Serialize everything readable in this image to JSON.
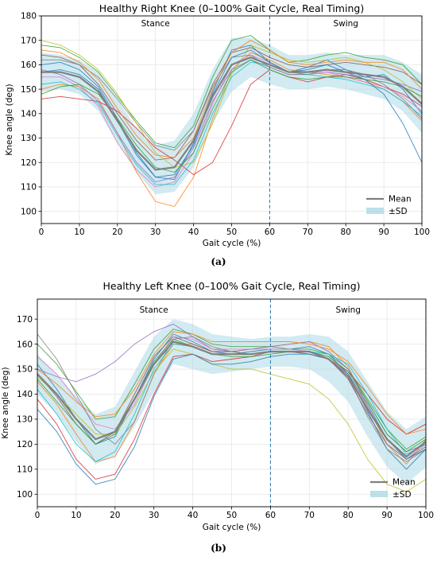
{
  "chart_data": [
    {
      "type": "line",
      "title": "Healthy Right Knee (0–100% Gait Cycle, Real Timing)",
      "xlabel": "Gait cycle (%)",
      "ylabel": "Knee angle (deg)",
      "xlim": [
        0,
        100
      ],
      "ylim": [
        95,
        180
      ],
      "xticks": [
        "0",
        "10",
        "20",
        "30",
        "40",
        "50",
        "60",
        "70",
        "80",
        "90",
        "100"
      ],
      "yticks": [
        "100",
        "110",
        "120",
        "130",
        "140",
        "150",
        "160",
        "170",
        "180"
      ],
      "grid": true,
      "legend_position": "bottom-right",
      "annotations": [
        "Stance",
        "Swing"
      ],
      "vlines": [
        60,
        100
      ],
      "caption": "(a)",
      "legend": {
        "mean_label": "Mean",
        "sd_label": "±SD"
      },
      "mean": {
        "x": [
          0,
          5,
          10,
          15,
          20,
          25,
          30,
          35,
          40,
          45,
          50,
          55,
          60,
          65,
          70,
          75,
          80,
          85,
          90,
          95,
          100
        ],
        "y": [
          157,
          157,
          155,
          149,
          137,
          125,
          117,
          118,
          129,
          147,
          160,
          163,
          160,
          157,
          157,
          158,
          157,
          156,
          155,
          151,
          144
        ]
      },
      "sd_upper": [
        165,
        164,
        162,
        157,
        146,
        134,
        127,
        129,
        140,
        158,
        171,
        171,
        168,
        164,
        164,
        165,
        164,
        164,
        164,
        161,
        156
      ],
      "sd_lower": [
        149,
        150,
        148,
        141,
        128,
        116,
        107,
        108,
        118,
        136,
        149,
        155,
        152,
        150,
        150,
        151,
        150,
        148,
        146,
        141,
        132
      ],
      "series": [
        {
          "y": [
            160,
            161,
            158,
            151,
            138,
            124,
            114,
            113,
            128,
            149,
            166,
            168,
            161,
            157,
            159,
            162,
            158,
            155,
            156,
            150,
            140
          ]
        },
        {
          "y": [
            150,
            152,
            151,
            146,
            132,
            116,
            104,
            102,
            114,
            138,
            158,
            165,
            162,
            158,
            157,
            156,
            155,
            153,
            150,
            145,
            137
          ]
        },
        {
          "y": [
            168,
            167,
            163,
            157,
            147,
            137,
            128,
            126,
            135,
            155,
            170,
            172,
            166,
            161,
            162,
            164,
            165,
            163,
            162,
            160,
            152
          ]
        },
        {
          "y": [
            146,
            147,
            146,
            145,
            141,
            134,
            126,
            121,
            115,
            120,
            135,
            152,
            158,
            155,
            153,
            155,
            156,
            154,
            151,
            148,
            143
          ]
        },
        {
          "y": [
            158,
            156,
            152,
            145,
            132,
            120,
            112,
            114,
            126,
            145,
            158,
            162,
            159,
            156,
            156,
            157,
            156,
            155,
            154,
            152,
            149
          ]
        },
        {
          "y": [
            164,
            163,
            160,
            152,
            140,
            129,
            121,
            122,
            133,
            152,
            165,
            167,
            163,
            160,
            159,
            160,
            161,
            160,
            159,
            157,
            152
          ]
        },
        {
          "y": [
            155,
            155,
            151,
            143,
            128,
            117,
            110,
            112,
            124,
            144,
            160,
            164,
            161,
            157,
            156,
            157,
            155,
            153,
            151,
            147,
            141
          ]
        },
        {
          "y": [
            162,
            162,
            160,
            155,
            146,
            136,
            127,
            125,
            133,
            151,
            163,
            164,
            159,
            156,
            156,
            158,
            158,
            156,
            152,
            146,
            138
          ]
        },
        {
          "y": [
            170,
            168,
            164,
            158,
            148,
            136,
            124,
            118,
            120,
            136,
            156,
            168,
            165,
            162,
            161,
            162,
            163,
            161,
            158,
            153,
            146
          ]
        },
        {
          "y": [
            152,
            153,
            150,
            144,
            131,
            119,
            111,
            111,
            121,
            140,
            155,
            161,
            160,
            157,
            156,
            155,
            154,
            152,
            150,
            145,
            139
          ]
        },
        {
          "y": [
            157,
            158,
            156,
            150,
            137,
            123,
            114,
            115,
            127,
            148,
            163,
            166,
            161,
            157,
            158,
            160,
            157,
            154,
            148,
            136,
            120
          ]
        },
        {
          "y": [
            166,
            165,
            161,
            154,
            142,
            131,
            123,
            122,
            130,
            150,
            165,
            170,
            166,
            161,
            160,
            161,
            162,
            161,
            161,
            158,
            150
          ]
        },
        {
          "y": [
            148,
            151,
            152,
            148,
            138,
            127,
            118,
            116,
            124,
            142,
            157,
            162,
            158,
            155,
            154,
            155,
            155,
            154,
            153,
            151,
            147
          ]
        }
      ]
    },
    {
      "type": "line",
      "title": "Healthy Left Knee (0–100% Gait Cycle, Real Timing)",
      "xlabel": "Gait cycle (%)",
      "ylabel": "Knee angle (deg)",
      "xlim": [
        0,
        100
      ],
      "ylim": [
        95,
        178
      ],
      "xticks": [
        "0",
        "10",
        "20",
        "30",
        "40",
        "50",
        "60",
        "70",
        "80",
        "90",
        "100"
      ],
      "yticks": [
        "100",
        "110",
        "120",
        "130",
        "140",
        "150",
        "160",
        "170"
      ],
      "grid": true,
      "legend_position": "bottom-right",
      "annotations": [
        "Stance",
        "Swing"
      ],
      "vlines": [
        60,
        100
      ],
      "caption": "(b)",
      "legend": {
        "mean_label": "Mean",
        "sd_label": "±SD"
      },
      "mean": {
        "x": [
          0,
          5,
          10,
          15,
          20,
          25,
          30,
          35,
          40,
          45,
          50,
          55,
          60,
          65,
          70,
          75,
          80,
          85,
          90,
          95,
          100
        ],
        "y": [
          148,
          140,
          130,
          122,
          125,
          138,
          152,
          161,
          159,
          156,
          156,
          156,
          157,
          157,
          157,
          154,
          147,
          134,
          122,
          115,
          121
        ]
      },
      "sd_upper": [
        156,
        148,
        139,
        132,
        135,
        149,
        163,
        170,
        168,
        164,
        163,
        162,
        163,
        163,
        164,
        163,
        157,
        145,
        133,
        126,
        131
      ],
      "sd_lower": [
        140,
        132,
        121,
        112,
        115,
        127,
        141,
        152,
        150,
        148,
        149,
        150,
        151,
        151,
        150,
        145,
        137,
        123,
        111,
        104,
        111
      ],
      "series": [
        {
          "y": [
            152,
            142,
            130,
            120,
            123,
            138,
            154,
            164,
            161,
            157,
            156,
            157,
            158,
            158,
            159,
            156,
            148,
            133,
            118,
            110,
            118
          ]
        },
        {
          "y": [
            145,
            136,
            124,
            113,
            115,
            129,
            148,
            160,
            160,
            157,
            157,
            158,
            159,
            160,
            161,
            159,
            151,
            135,
            120,
            112,
            122
          ]
        },
        {
          "y": [
            160,
            152,
            141,
            130,
            131,
            144,
            158,
            166,
            164,
            160,
            159,
            159,
            159,
            158,
            158,
            156,
            150,
            138,
            126,
            118,
            123
          ]
        },
        {
          "y": [
            138,
            128,
            114,
            106,
            108,
            122,
            140,
            155,
            156,
            153,
            154,
            155,
            157,
            157,
            156,
            154,
            149,
            140,
            130,
            124,
            128
          ]
        },
        {
          "y": [
            150,
            147,
            145,
            148,
            153,
            160,
            165,
            168,
            163,
            158,
            157,
            158,
            159,
            160,
            161,
            157,
            150,
            137,
            124,
            117,
            120
          ]
        },
        {
          "y": [
            148,
            139,
            128,
            120,
            125,
            140,
            155,
            163,
            160,
            157,
            157,
            156,
            157,
            157,
            157,
            154,
            146,
            132,
            120,
            114,
            119
          ]
        },
        {
          "y": [
            155,
            148,
            138,
            128,
            126,
            136,
            152,
            163,
            162,
            158,
            158,
            158,
            158,
            158,
            157,
            155,
            148,
            135,
            122,
            114,
            120
          ]
        },
        {
          "y": [
            164,
            154,
            140,
            126,
            120,
            129,
            148,
            162,
            163,
            159,
            157,
            156,
            157,
            157,
            156,
            154,
            147,
            131,
            118,
            113,
            118
          ]
        },
        {
          "y": [
            147,
            140,
            132,
            124,
            124,
            135,
            149,
            158,
            156,
            152,
            150,
            150,
            148,
            146,
            144,
            138,
            128,
            114,
            104,
            101,
            106
          ]
        },
        {
          "y": [
            142,
            132,
            120,
            113,
            117,
            132,
            150,
            160,
            159,
            156,
            156,
            156,
            157,
            157,
            157,
            156,
            152,
            140,
            126,
            116,
            120
          ]
        },
        {
          "y": [
            134,
            125,
            112,
            104,
            106,
            119,
            139,
            154,
            156,
            152,
            152,
            153,
            155,
            156,
            156,
            154,
            148,
            136,
            122,
            114,
            118
          ]
        },
        {
          "y": [
            150,
            144,
            137,
            131,
            132,
            142,
            156,
            165,
            164,
            161,
            161,
            161,
            161,
            161,
            160,
            158,
            153,
            143,
            132,
            124,
            126
          ]
        },
        {
          "y": [
            146,
            137,
            128,
            120,
            124,
            138,
            153,
            162,
            159,
            156,
            155,
            155,
            156,
            157,
            157,
            155,
            149,
            137,
            124,
            117,
            122
          ]
        }
      ]
    }
  ],
  "colors": {
    "mean": "#808080",
    "sd_band": "#add8e6",
    "vline": "#1f77b4",
    "series_palette": [
      "#1f77b4",
      "#ff7f0e",
      "#2ca02c",
      "#d62728",
      "#9467bd",
      "#8c564b",
      "#e377c2",
      "#7f7f7f",
      "#bcbd22",
      "#17becf",
      "#1f77b4",
      "#ff7f0e",
      "#2ca02c"
    ]
  }
}
